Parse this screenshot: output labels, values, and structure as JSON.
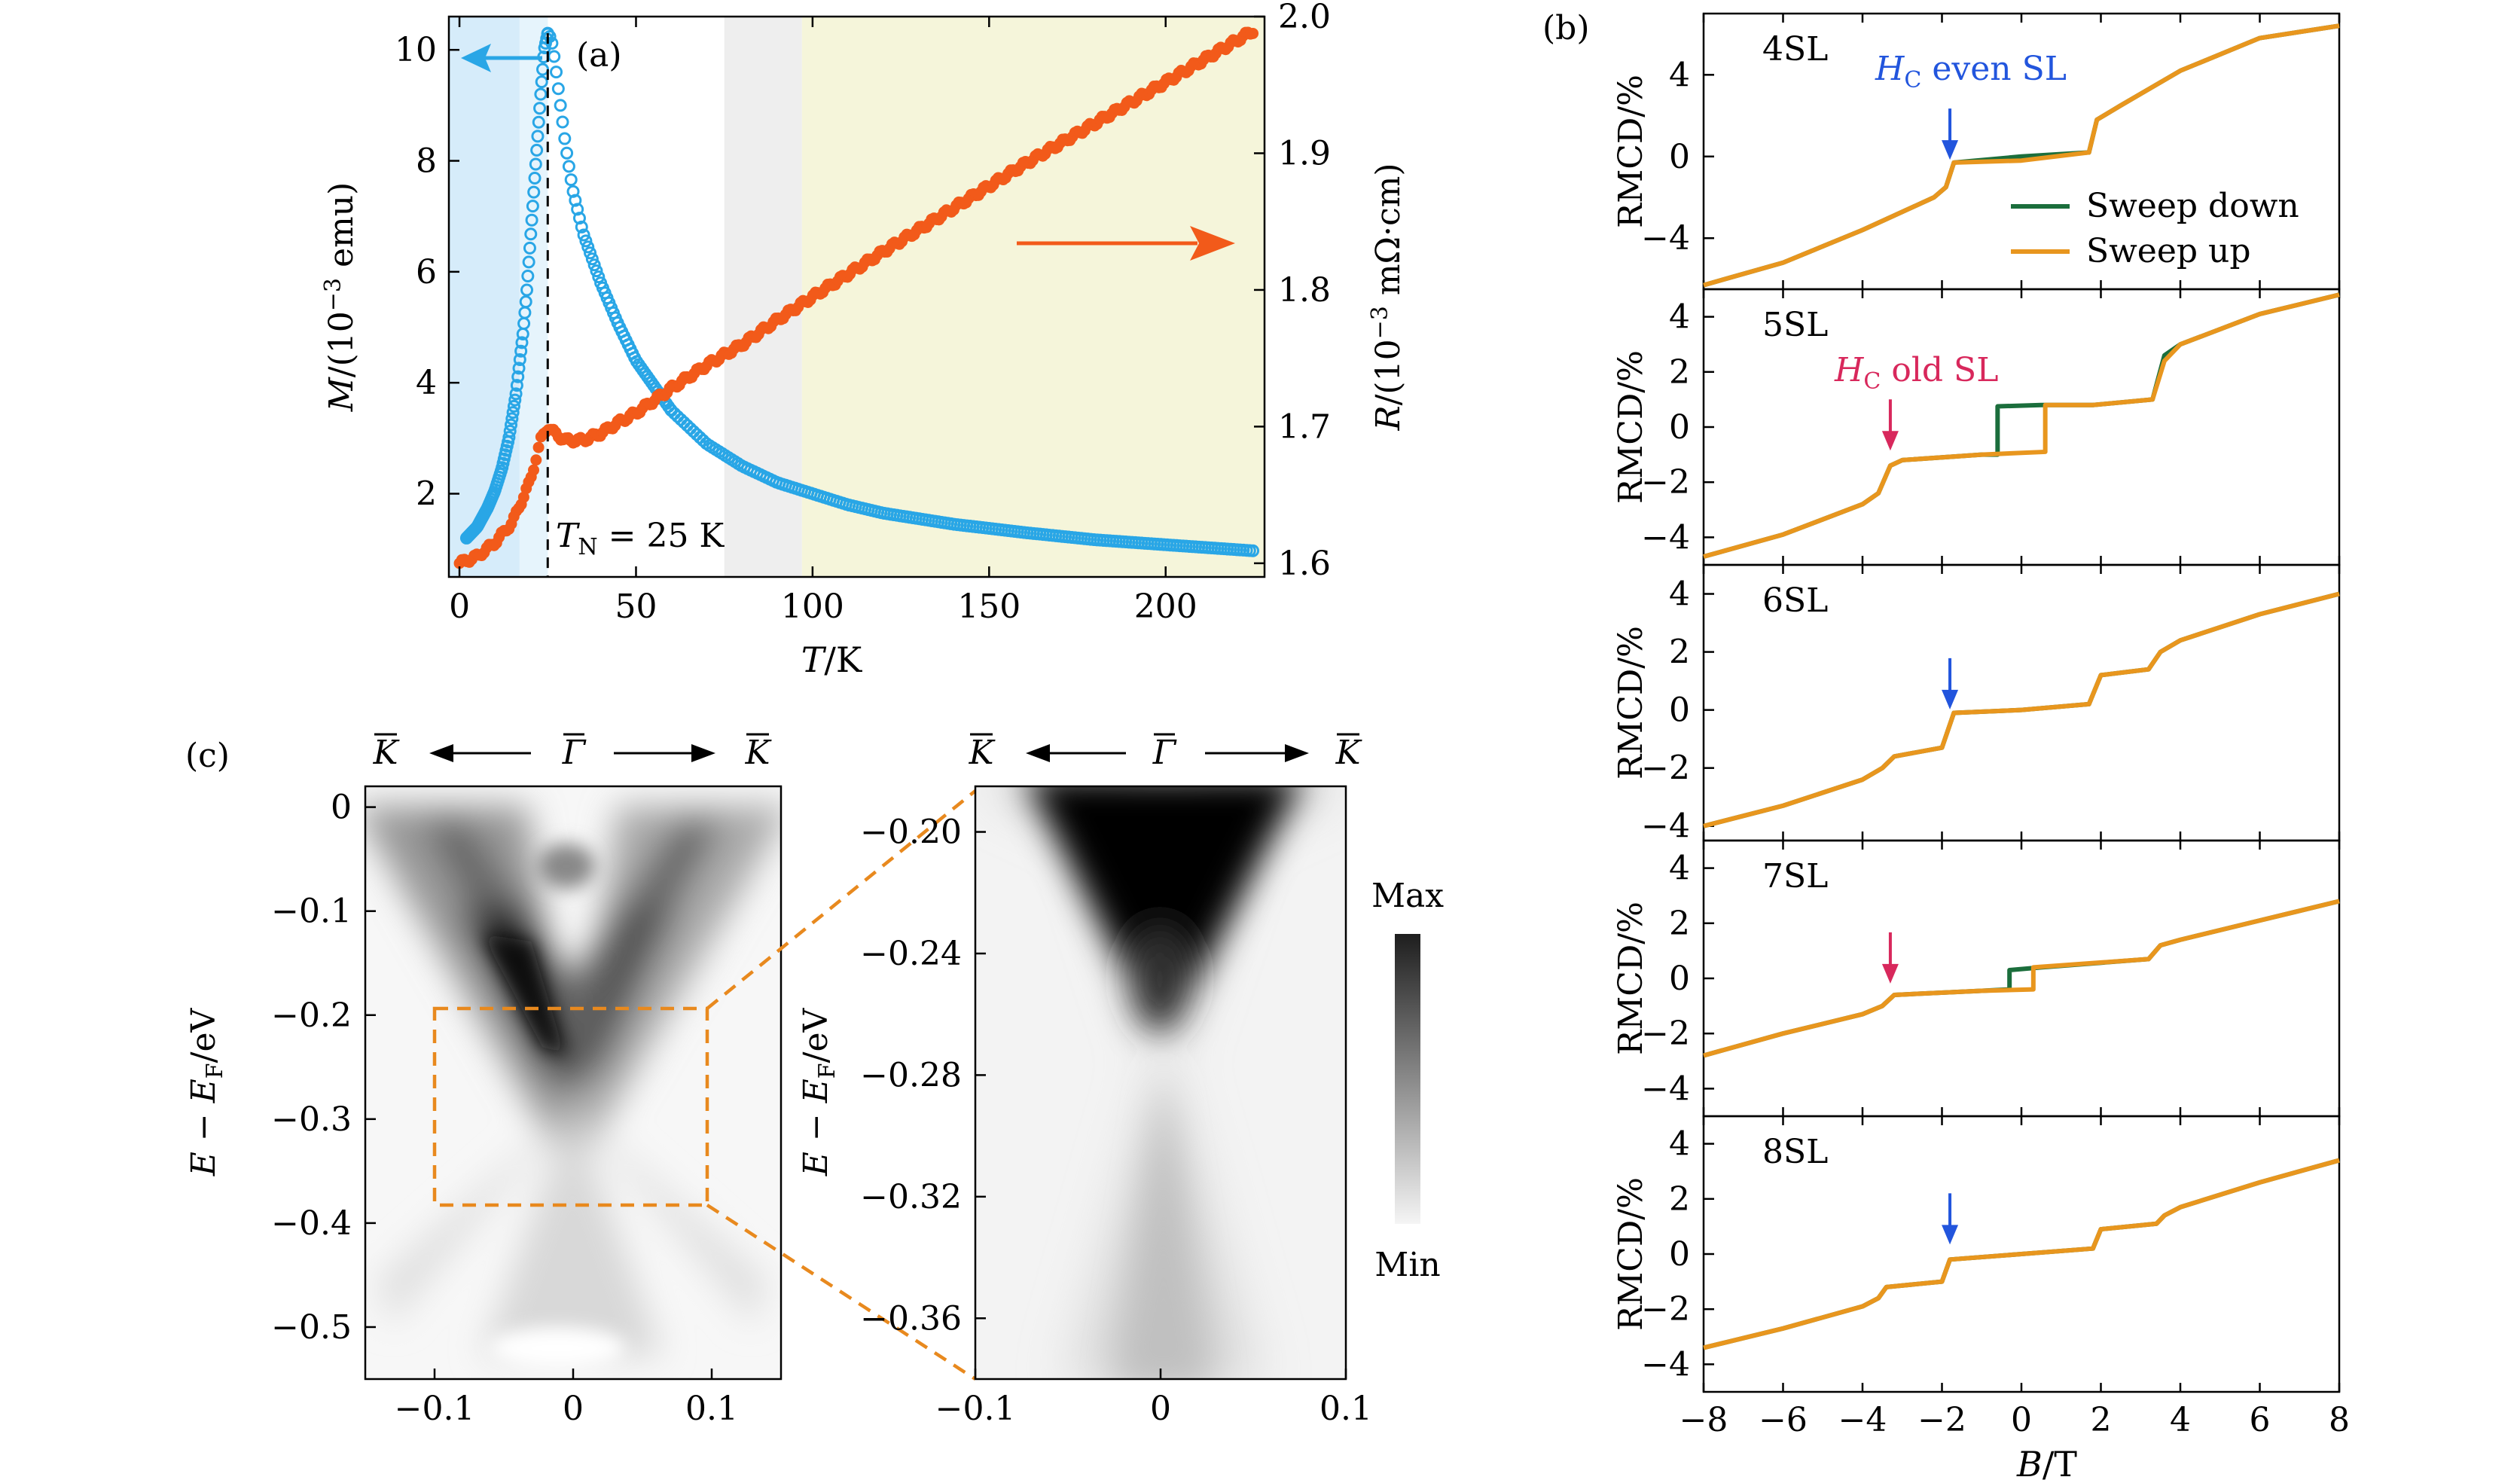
{
  "figure": {
    "panels": [
      {
        "id": "a",
        "label": "(a)",
        "xlabel_sym": "T",
        "xlabel_unit": "/K",
        "ylabel_left_sym": "M",
        "ylabel_left_unit": "/(10",
        "ylabel_left_exp": "−3",
        "ylabel_left_tail": " emu)",
        "ylabel_right_sym": "R",
        "ylabel_right_unit": "/(10",
        "ylabel_right_exp": "−3",
        "ylabel_right_tail": " mΩ·cm)",
        "annotation_sym": "T",
        "annotation_sub": "N",
        "annotation_tail": " = 25 K",
        "colors": {
          "magnetization": "#29a6e6",
          "resistivity": "#f25a1a",
          "region_blue": "#d6ecfa",
          "region_gray": "#eeeeee",
          "region_yellow": "#f5f5da"
        }
      },
      {
        "id": "b",
        "label": "(b)",
        "xlabel_sym": "B",
        "xlabel_unit": "/T",
        "ylabel": "RMCD/%",
        "legend": [
          "Sweep down",
          "Sweep up"
        ],
        "colors": {
          "sweep_down": "#1b6e3c",
          "sweep_up": "#e8961e",
          "arrow_even": "#2255dd",
          "arrow_odd": "#d8285c"
        },
        "annot_even_sym": "H",
        "annot_even_sub": "C",
        "annot_even_tail": " even SL",
        "annot_odd_sym": "H",
        "annot_odd_sub": "C",
        "annot_odd_tail": " old SL",
        "subpanels": [
          "4SL",
          "5SL",
          "6SL",
          "7SL",
          "8SL"
        ]
      },
      {
        "id": "c",
        "label": "(c)",
        "ylabel_sym": "E",
        "ylabel_mid": " − ",
        "ylabel_sym2": "E",
        "ylabel_sub": "F",
        "ylabel_unit": "/eV",
        "k_label": "K",
        "gamma_label": "Γ",
        "colorbar_max": "Max",
        "colorbar_min": "Min"
      }
    ]
  },
  "chart_data": [
    {
      "type": "scatter",
      "panel": "a",
      "xlabel": "T/K",
      "ylabel": "M/(10^-3 emu)",
      "ylabel_right": "R/(10^-3 mΩ·cm)",
      "xlim": [
        -3,
        228
      ],
      "ylim": [
        0.5,
        10.6
      ],
      "ylim_right": [
        1.59,
        2.0
      ],
      "x_ticks": [
        0,
        50,
        100,
        150,
        200
      ],
      "y_ticks": [
        2,
        4,
        6,
        8,
        10
      ],
      "y_ticks_right": [
        1.6,
        1.7,
        1.8,
        1.9,
        2.0
      ],
      "regions": [
        {
          "from": -3,
          "to": 25,
          "color": "blue"
        },
        {
          "from": 75,
          "to": 97,
          "color": "gray"
        },
        {
          "from": 97,
          "to": 228,
          "color": "yellow"
        }
      ],
      "series": [
        {
          "name": "M",
          "axis": "left",
          "x": [
            2,
            5,
            8,
            10,
            12,
            14,
            16,
            18,
            19,
            20,
            21,
            22,
            23,
            24,
            25,
            26,
            27,
            28,
            30,
            32,
            35,
            40,
            45,
            50,
            60,
            70,
            80,
            90,
            100,
            110,
            120,
            140,
            160,
            180,
            200,
            225
          ],
          "y": [
            1.2,
            1.4,
            1.75,
            2.05,
            2.45,
            3.0,
            3.8,
            4.9,
            5.6,
            6.5,
            7.4,
            8.3,
            9.2,
            10.0,
            10.3,
            10.2,
            9.8,
            9.3,
            8.3,
            7.5,
            6.7,
            5.8,
            5.05,
            4.4,
            3.5,
            2.9,
            2.5,
            2.2,
            2.0,
            1.8,
            1.65,
            1.45,
            1.3,
            1.17,
            1.08,
            0.97
          ]
        },
        {
          "name": "R",
          "axis": "right",
          "x": [
            0,
            5,
            10,
            15,
            20,
            23,
            25,
            27,
            30,
            35,
            40,
            45,
            50,
            60,
            70,
            80,
            90,
            100,
            120,
            140,
            160,
            180,
            200,
            225
          ],
          "y": [
            1.6,
            1.605,
            1.615,
            1.63,
            1.66,
            1.69,
            1.7,
            1.695,
            1.69,
            1.69,
            1.695,
            1.703,
            1.71,
            1.728,
            1.745,
            1.76,
            1.778,
            1.795,
            1.828,
            1.86,
            1.892,
            1.922,
            1.952,
            1.99
          ]
        }
      ],
      "annotations": [
        "(a)",
        "T_N = 25 K"
      ]
    },
    {
      "type": "line",
      "panel": "b",
      "xlabel": "B/T",
      "ylabel": "RMCD/%",
      "xlim": [
        -8,
        8
      ],
      "x_ticks": [
        -8,
        -6,
        -4,
        -2,
        0,
        2,
        4,
        6,
        8
      ],
      "subplots": [
        {
          "label": "4SL",
          "ylim": [
            -6.5,
            7
          ],
          "y_ticks": [
            -4,
            0,
            4
          ],
          "arrow_at": -1.8,
          "arrow_type": "even",
          "series": [
            {
              "name": "Sweep down",
              "x": [
                -8,
                -6,
                -4,
                -2.2,
                -1.9,
                -1.7,
                0,
                1.7,
                1.9,
                2.5,
                4,
                6,
                8
              ],
              "y": [
                -6.3,
                -5.2,
                -3.6,
                -2.0,
                -1.5,
                -0.3,
                0.0,
                0.2,
                1.8,
                2.5,
                4.2,
                5.8,
                6.4
              ]
            },
            {
              "name": "Sweep up",
              "x": [
                -8,
                -6,
                -4,
                -2.2,
                -1.9,
                -1.7,
                0,
                1.7,
                1.9,
                2.5,
                4,
                6,
                8
              ],
              "y": [
                -6.3,
                -5.2,
                -3.6,
                -2.0,
                -1.5,
                -0.3,
                -0.2,
                0.2,
                1.8,
                2.5,
                4.2,
                5.8,
                6.4
              ]
            }
          ]
        },
        {
          "label": "5SL",
          "ylim": [
            -5,
            5
          ],
          "y_ticks": [
            -4,
            -2,
            0,
            2,
            4
          ],
          "arrow_at": -3.3,
          "arrow_type": "odd",
          "series": [
            {
              "name": "Sweep down",
              "x": [
                -8,
                -6,
                -4,
                -3.6,
                -3.3,
                -3.0,
                -1,
                -0.6,
                -0.6,
                0.5,
                1.8,
                3.3,
                3.6,
                4,
                6,
                8
              ],
              "y": [
                -4.7,
                -3.9,
                -2.8,
                -2.4,
                -1.4,
                -1.2,
                -1.0,
                -1.0,
                0.75,
                0.8,
                0.8,
                1.0,
                2.6,
                3.0,
                4.1,
                4.8
              ]
            },
            {
              "name": "Sweep up",
              "x": [
                -8,
                -6,
                -4,
                -3.6,
                -3.3,
                -3.0,
                -1,
                0.6,
                0.6,
                1.8,
                3.3,
                3.6,
                4,
                6,
                8
              ],
              "y": [
                -4.7,
                -3.9,
                -2.8,
                -2.4,
                -1.4,
                -1.2,
                -1.0,
                -0.9,
                0.8,
                0.8,
                1.0,
                2.4,
                3.0,
                4.1,
                4.8
              ]
            }
          ]
        },
        {
          "label": "6SL",
          "ylim": [
            -4.5,
            5
          ],
          "y_ticks": [
            -4,
            -2,
            0,
            2,
            4
          ],
          "arrow_at": -1.8,
          "arrow_type": "even",
          "series": [
            {
              "name": "Sweep down",
              "x": [
                -8,
                -6,
                -4,
                -3.5,
                -3.2,
                -2.0,
                -1.7,
                0,
                1.7,
                2.0,
                3.2,
                3.5,
                4,
                6,
                8
              ],
              "y": [
                -4.0,
                -3.3,
                -2.4,
                -2.0,
                -1.6,
                -1.3,
                -0.1,
                0.0,
                0.2,
                1.2,
                1.4,
                2.0,
                2.4,
                3.3,
                4.0
              ]
            },
            {
              "name": "Sweep up",
              "x": [
                -8,
                -6,
                -4,
                -3.5,
                -3.2,
                -2.0,
                -1.7,
                0,
                1.7,
                2.0,
                3.2,
                3.5,
                4,
                6,
                8
              ],
              "y": [
                -4.0,
                -3.3,
                -2.4,
                -2.0,
                -1.6,
                -1.3,
                -0.1,
                0.0,
                0.2,
                1.2,
                1.4,
                2.0,
                2.4,
                3.3,
                4.0
              ]
            }
          ]
        },
        {
          "label": "7SL",
          "ylim": [
            -5,
            5
          ],
          "y_ticks": [
            -4,
            -2,
            0,
            2,
            4
          ],
          "arrow_at": -3.3,
          "arrow_type": "odd",
          "series": [
            {
              "name": "Sweep down",
              "x": [
                -8,
                -6,
                -4,
                -3.5,
                -3.2,
                -1,
                -0.3,
                -0.3,
                0.5,
                3.2,
                3.5,
                4,
                6,
                8
              ],
              "y": [
                -2.8,
                -2.0,
                -1.3,
                -1.0,
                -0.6,
                -0.45,
                -0.4,
                0.3,
                0.4,
                0.7,
                1.2,
                1.4,
                2.1,
                2.8
              ]
            },
            {
              "name": "Sweep up",
              "x": [
                -8,
                -6,
                -4,
                -3.5,
                -3.2,
                -1,
                0.3,
                0.3,
                3.2,
                3.5,
                4,
                6,
                8
              ],
              "y": [
                -2.8,
                -2.0,
                -1.3,
                -1.0,
                -0.6,
                -0.45,
                -0.4,
                0.4,
                0.7,
                1.2,
                1.4,
                2.1,
                2.8
              ]
            }
          ]
        },
        {
          "label": "8SL",
          "ylim": [
            -5,
            5
          ],
          "y_ticks": [
            -4,
            -2,
            0,
            2,
            4
          ],
          "arrow_at": -1.8,
          "arrow_type": "even",
          "series": [
            {
              "name": "Sweep down",
              "x": [
                -8,
                -6,
                -4,
                -3.6,
                -3.4,
                -2.0,
                -1.8,
                0,
                1.8,
                2.0,
                3.4,
                3.6,
                4,
                6,
                8
              ],
              "y": [
                -3.4,
                -2.7,
                -1.9,
                -1.6,
                -1.2,
                -1.0,
                -0.2,
                0.0,
                0.2,
                0.9,
                1.1,
                1.4,
                1.7,
                2.6,
                3.4
              ]
            },
            {
              "name": "Sweep up",
              "x": [
                -8,
                -6,
                -4,
                -3.6,
                -3.4,
                -2.0,
                -1.8,
                0,
                1.8,
                2.0,
                3.4,
                3.6,
                4,
                6,
                8
              ],
              "y": [
                -3.4,
                -2.7,
                -1.9,
                -1.6,
                -1.2,
                -1.0,
                -0.2,
                0.0,
                0.2,
                0.9,
                1.1,
                1.4,
                1.7,
                2.6,
                3.4
              ]
            }
          ]
        }
      ]
    },
    {
      "type": "heatmap",
      "panel": "c-left",
      "xlim": [
        -0.15,
        0.15
      ],
      "ylim": [
        -0.55,
        0.02
      ],
      "x_ticks": [
        -0.1,
        0,
        0.1
      ],
      "y_ticks": [
        0,
        -0.1,
        -0.2,
        -0.3,
        -0.4,
        -0.5
      ],
      "dirac_point": [
        0,
        -0.29
      ],
      "zoom_box": {
        "x": [
          -0.1,
          0.1
        ],
        "y": [
          -0.375,
          -0.185
        ]
      }
    },
    {
      "type": "heatmap",
      "panel": "c-right",
      "xlim": [
        -0.1,
        0.1
      ],
      "ylim": [
        -0.38,
        -0.185
      ],
      "x_ticks": [
        -0.1,
        0,
        0.1
      ],
      "y_ticks": [
        -0.2,
        -0.24,
        -0.28,
        -0.32,
        -0.36
      ],
      "dirac_point": [
        0,
        -0.29
      ]
    }
  ]
}
